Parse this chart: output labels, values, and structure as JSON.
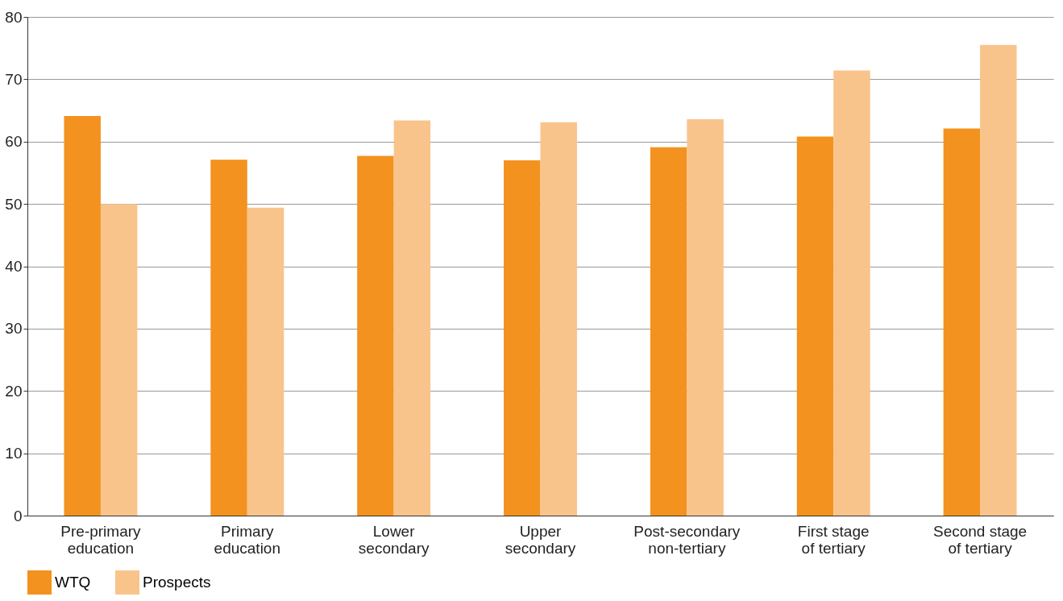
{
  "chart_data": {
    "type": "bar",
    "categories": [
      "Pre-primary education",
      "Primary education",
      "Lower secondary",
      "Upper secondary",
      "Post-secondary non-tertiary",
      "First stage of tertiary",
      "Second stage of tertiary"
    ],
    "series": [
      {
        "name": "WTQ",
        "color": "#f3921f",
        "values": [
          64.1,
          57.1,
          57.7,
          57.0,
          59.1,
          60.8,
          62.1
        ]
      },
      {
        "name": "Prospects",
        "color": "#f9c48b",
        "values": [
          50.0,
          49.4,
          63.4,
          63.1,
          63.6,
          71.4,
          75.5
        ]
      }
    ],
    "ylim": [
      0,
      80
    ],
    "yticks": [
      0,
      10,
      20,
      30,
      40,
      50,
      60,
      70,
      80
    ],
    "grid": "y",
    "legend": "bottom left"
  }
}
